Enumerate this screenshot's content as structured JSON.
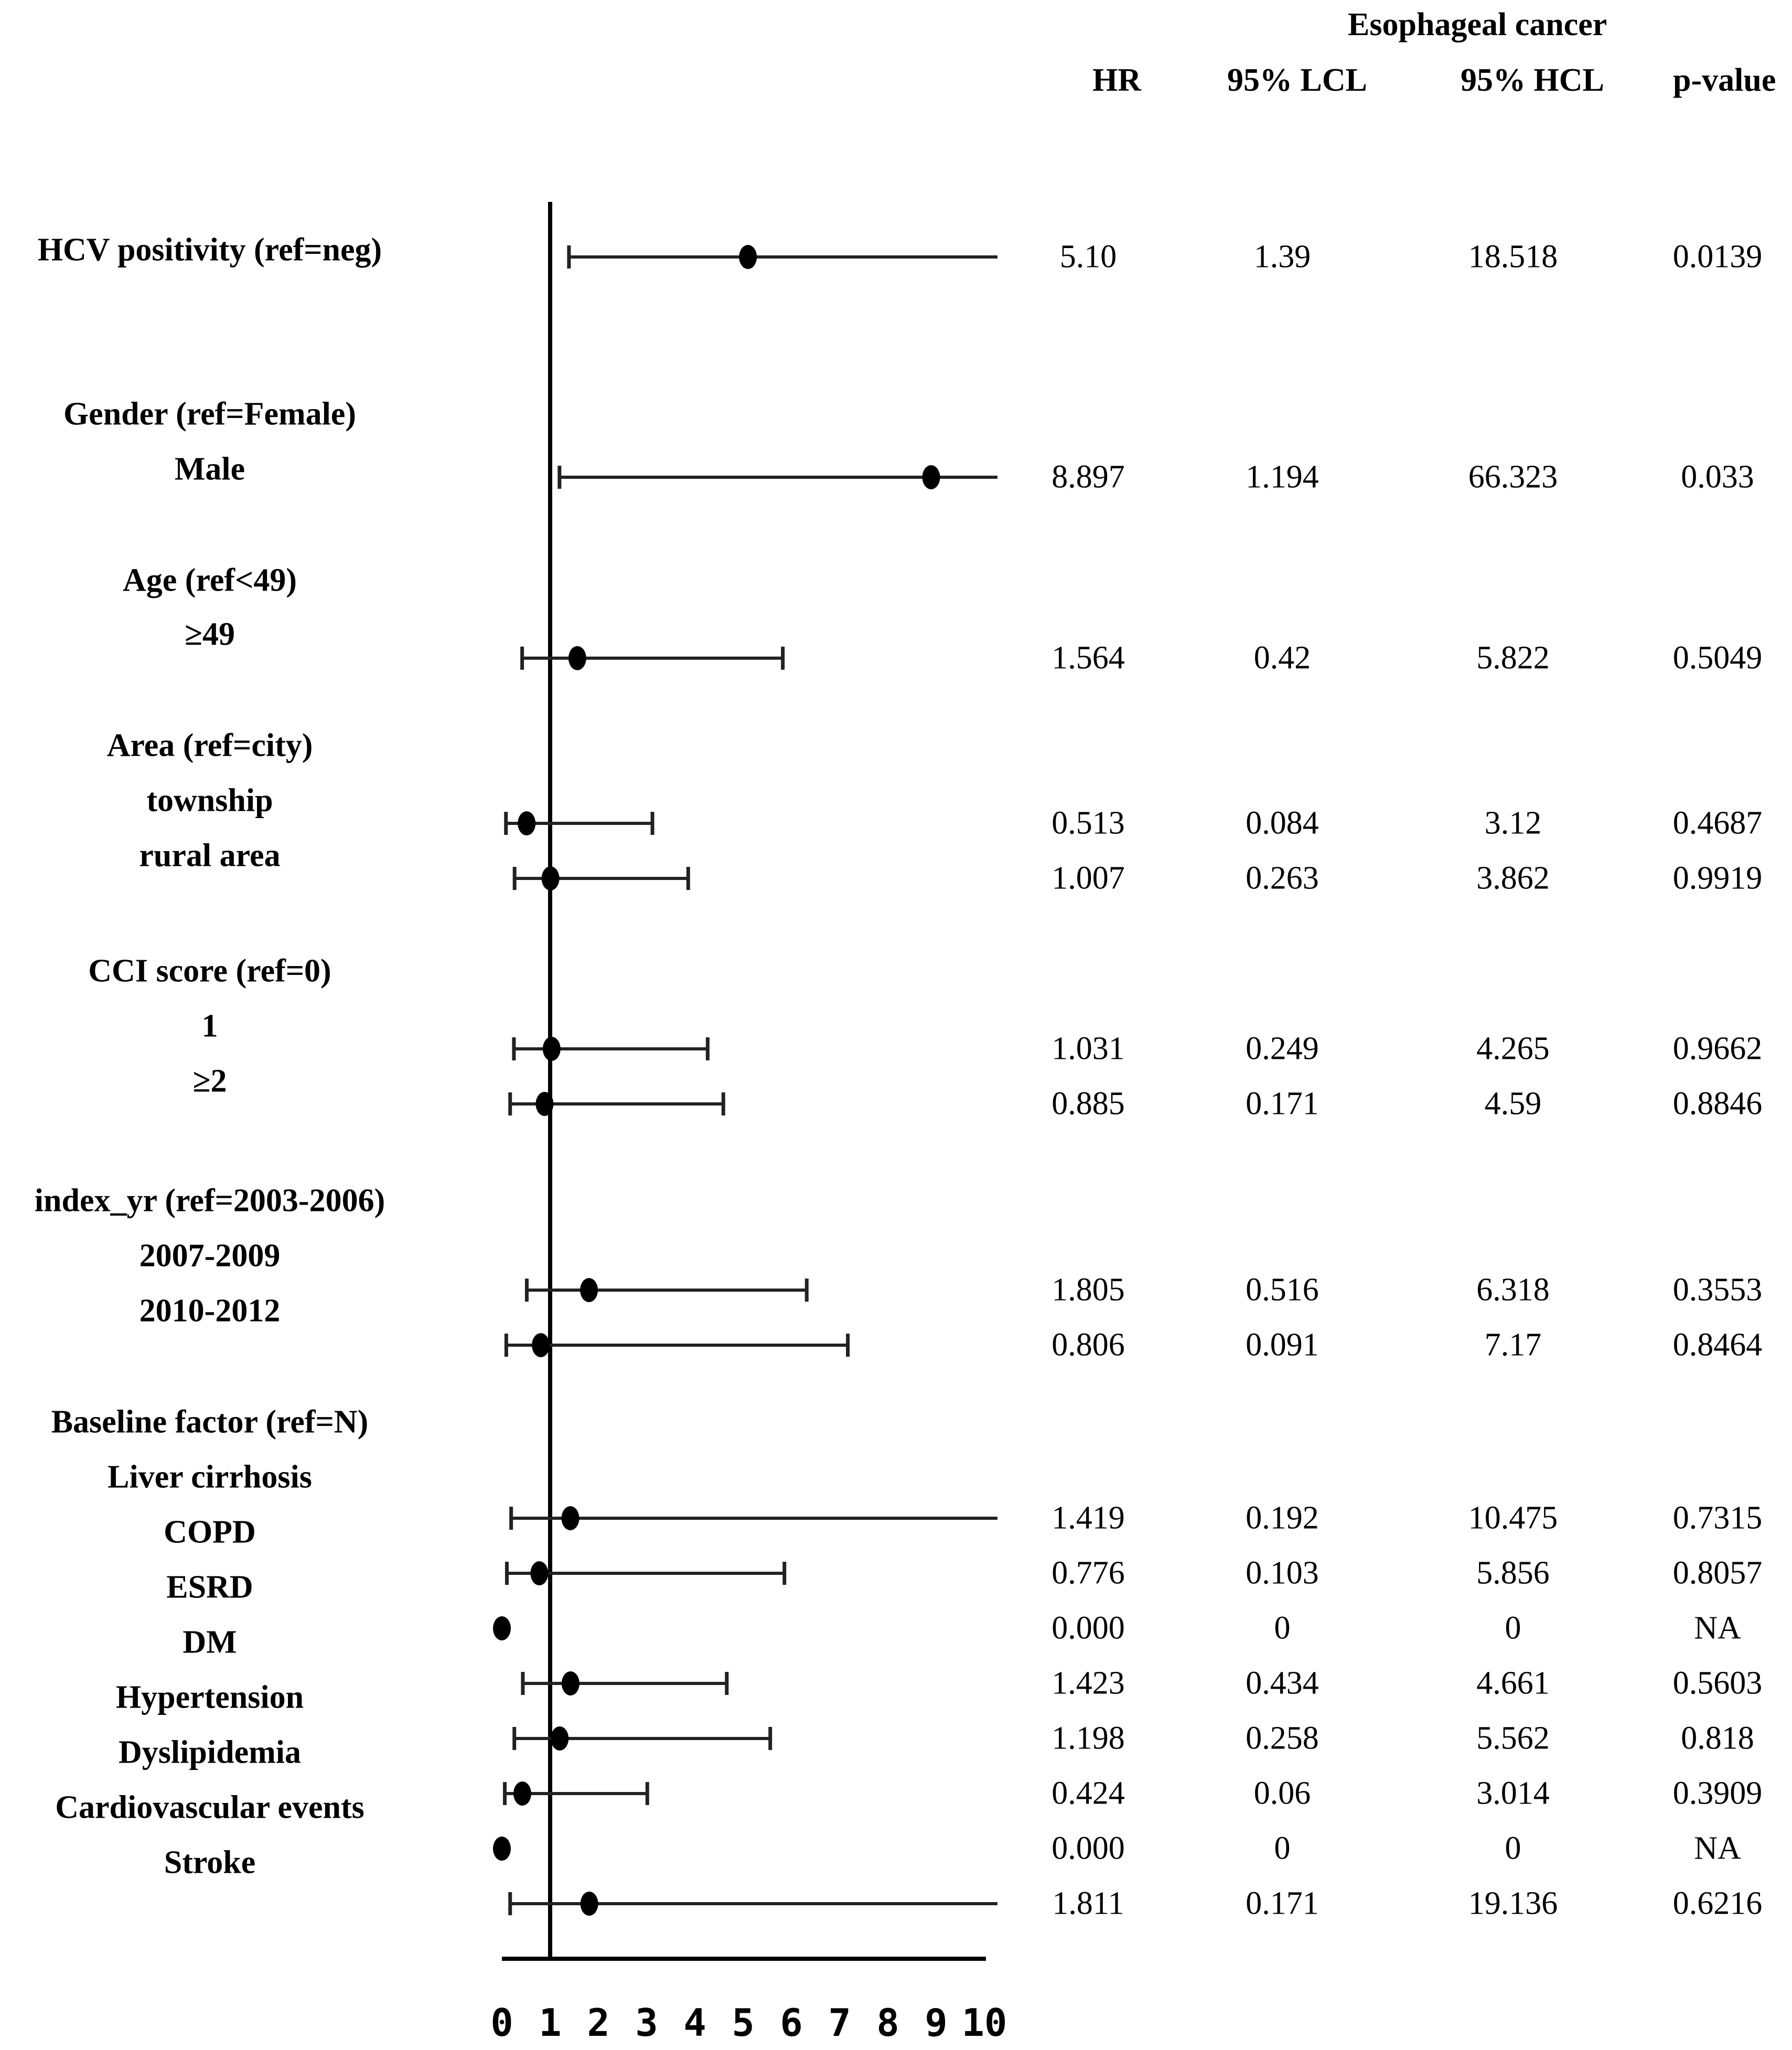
{
  "chart_data": {
    "type": "forest",
    "title": "Esophageal cancer",
    "columns": [
      "HR",
      "95% LCL",
      "95% HCL",
      "p-value"
    ],
    "xlim": [
      0,
      10
    ],
    "reference_line": 1,
    "xticks": [
      "0",
      "1",
      "2",
      "3",
      "4",
      "5",
      "6",
      "7",
      "8",
      "9",
      "10"
    ],
    "labels": [
      "HCV positivity (ref=neg)",
      "Gender (ref=Female)",
      "Male",
      "Age (ref<49)",
      "≥49",
      "Area (ref=city)",
      "township",
      "rural area",
      "CCI score (ref=0)",
      "1",
      "≥2",
      "index_yr (ref=2003-2006)",
      "2007-2009",
      "2010-2012",
      "Baseline factor (ref=N)",
      "Liver cirrhosis",
      "COPD",
      "ESRD",
      "DM",
      "Hypertension",
      "Dyslipidemia",
      "Cardiovascular events",
      "Stroke"
    ],
    "rows": [
      {
        "hr": "5.10",
        "lcl": "1.39",
        "hcl": "18.518",
        "p": "0.0139",
        "est": 5.1,
        "lo": 1.39,
        "hi": 18.518
      },
      {
        "hr": "8.897",
        "lcl": "1.194",
        "hcl": "66.323",
        "p": "0.033",
        "est": 8.897,
        "lo": 1.194,
        "hi": 66.323
      },
      {
        "hr": "1.564",
        "lcl": "0.42",
        "hcl": "5.822",
        "p": "0.5049",
        "est": 1.564,
        "lo": 0.42,
        "hi": 5.822
      },
      {
        "hr": "0.513",
        "lcl": "0.084",
        "hcl": "3.12",
        "p": "0.4687",
        "est": 0.513,
        "lo": 0.084,
        "hi": 3.12
      },
      {
        "hr": "1.007",
        "lcl": "0.263",
        "hcl": "3.862",
        "p": "0.9919",
        "est": 1.007,
        "lo": 0.263,
        "hi": 3.862
      },
      {
        "hr": "1.031",
        "lcl": "0.249",
        "hcl": "4.265",
        "p": "0.9662",
        "est": 1.031,
        "lo": 0.249,
        "hi": 4.265
      },
      {
        "hr": "0.885",
        "lcl": "0.171",
        "hcl": "4.59",
        "p": "0.8846",
        "est": 0.885,
        "lo": 0.171,
        "hi": 4.59
      },
      {
        "hr": "1.805",
        "lcl": "0.516",
        "hcl": "6.318",
        "p": "0.3553",
        "est": 1.805,
        "lo": 0.516,
        "hi": 6.318
      },
      {
        "hr": "0.806",
        "lcl": "0.091",
        "hcl": "7.17",
        "p": "0.8464",
        "est": 0.806,
        "lo": 0.091,
        "hi": 7.17
      },
      {
        "hr": "1.419",
        "lcl": "0.192",
        "hcl": "10.475",
        "p": "0.7315",
        "est": 1.419,
        "lo": 0.192,
        "hi": 10.475
      },
      {
        "hr": "0.776",
        "lcl": "0.103",
        "hcl": "5.856",
        "p": "0.8057",
        "est": 0.776,
        "lo": 0.103,
        "hi": 5.856
      },
      {
        "hr": "0.000",
        "lcl": "0",
        "hcl": "0",
        "p": "NA",
        "est": 0,
        "lo": 0,
        "hi": 0
      },
      {
        "hr": "1.423",
        "lcl": "0.434",
        "hcl": "4.661",
        "p": "0.5603",
        "est": 1.423,
        "lo": 0.434,
        "hi": 4.661
      },
      {
        "hr": "1.198",
        "lcl": "0.258",
        "hcl": "5.562",
        "p": "0.818",
        "est": 1.198,
        "lo": 0.258,
        "hi": 5.562
      },
      {
        "hr": "0.424",
        "lcl": "0.06",
        "hcl": "3.014",
        "p": "0.3909",
        "est": 0.424,
        "lo": 0.06,
        "hi": 3.014
      },
      {
        "hr": "0.000",
        "lcl": "0",
        "hcl": "0",
        "p": "NA",
        "est": 0,
        "lo": 0,
        "hi": 0
      },
      {
        "hr": "1.811",
        "lcl": "0.171",
        "hcl": "19.136",
        "p": "0.6216",
        "est": 1.811,
        "lo": 0.171,
        "hi": 19.136
      }
    ]
  }
}
